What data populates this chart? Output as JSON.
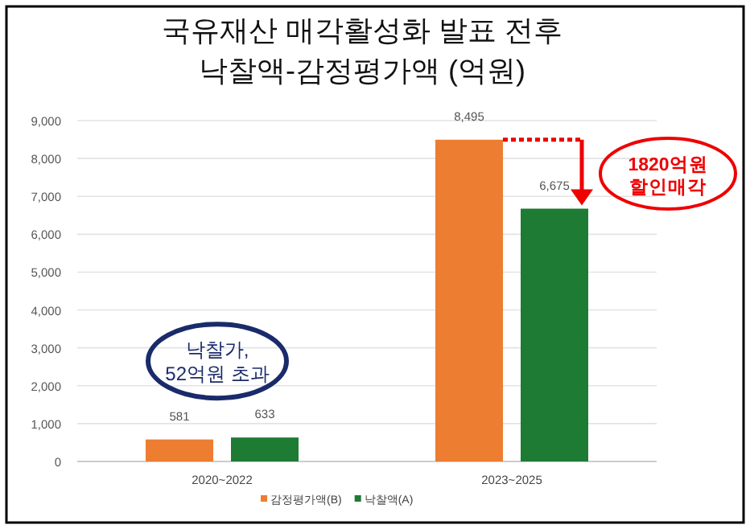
{
  "chart_data": {
    "type": "bar",
    "title": "국유재산 매각활성화 발표 전후\n낙찰액-감정평가액 (억원)",
    "categories": [
      "2020~2022",
      "2023~2025"
    ],
    "series": [
      {
        "name": "감정평가액(B)",
        "color": "#ed7d31",
        "values": [
          581,
          8495
        ],
        "value_labels": [
          "581",
          "8,495"
        ]
      },
      {
        "name": "낙찰액(A)",
        "color": "#1e7b34",
        "values": [
          633,
          6675
        ],
        "value_labels": [
          "633",
          "6,675"
        ]
      }
    ],
    "ylim": [
      0,
      9000
    ],
    "yticks": [
      0,
      {
        "value": 1000,
        "label": "1,000"
      },
      {
        "value": 2000,
        "label": "2,000"
      },
      {
        "value": 3000,
        "label": "3,000"
      },
      {
        "value": 4000,
        "label": "4,000"
      },
      {
        "value": 5000,
        "label": "5,000"
      },
      {
        "value": 6000,
        "label": "6,000"
      },
      {
        "value": 7000,
        "label": "7,000"
      },
      {
        "value": 8000,
        "label": "8,000"
      },
      {
        "value": 9000,
        "label": "9,000"
      }
    ],
    "grid": "y",
    "legend": "bottom",
    "annotations": [
      "1820억원\n할인매각",
      "낙찰가,\n52억원 초과"
    ]
  }
}
